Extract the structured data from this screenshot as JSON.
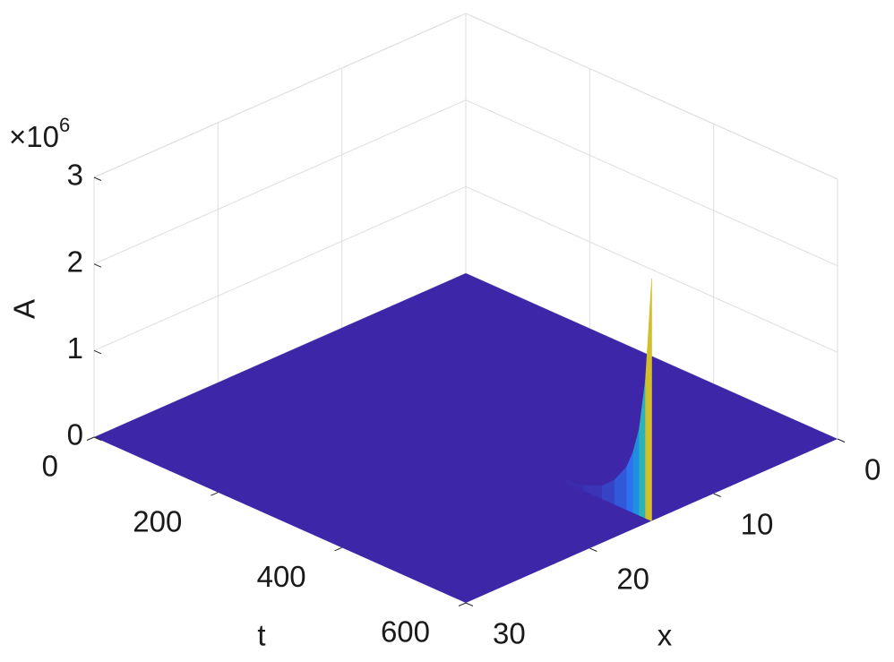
{
  "chart_data": {
    "type": "surface3d",
    "xlabel": "x",
    "ylabel": "t",
    "zlabel": "A",
    "z_multiplier": {
      "base": "×10",
      "exponent": "6"
    },
    "xlim": [
      0,
      30
    ],
    "xticks": [
      0,
      10,
      20,
      30
    ],
    "ylim": [
      0,
      600
    ],
    "yticks": [
      0,
      200,
      400,
      600
    ],
    "zlim": [
      0,
      3000000
    ],
    "zticks": [
      0,
      {
        "value": 1000000,
        "label": "1"
      },
      {
        "value": 2000000,
        "label": "2"
      },
      {
        "value": 3000000,
        "label": "3"
      }
    ],
    "grid": true,
    "color": "#3e26a8",
    "colormap": "parula",
    "spike": {
      "x": 15,
      "t": [
        430,
        460,
        490,
        520,
        540,
        560,
        570,
        580,
        590,
        600
      ],
      "values": [
        0,
        20000,
        60000,
        150000,
        280000,
        500000,
        700000,
        1000000,
        1600000,
        2800000
      ]
    }
  }
}
